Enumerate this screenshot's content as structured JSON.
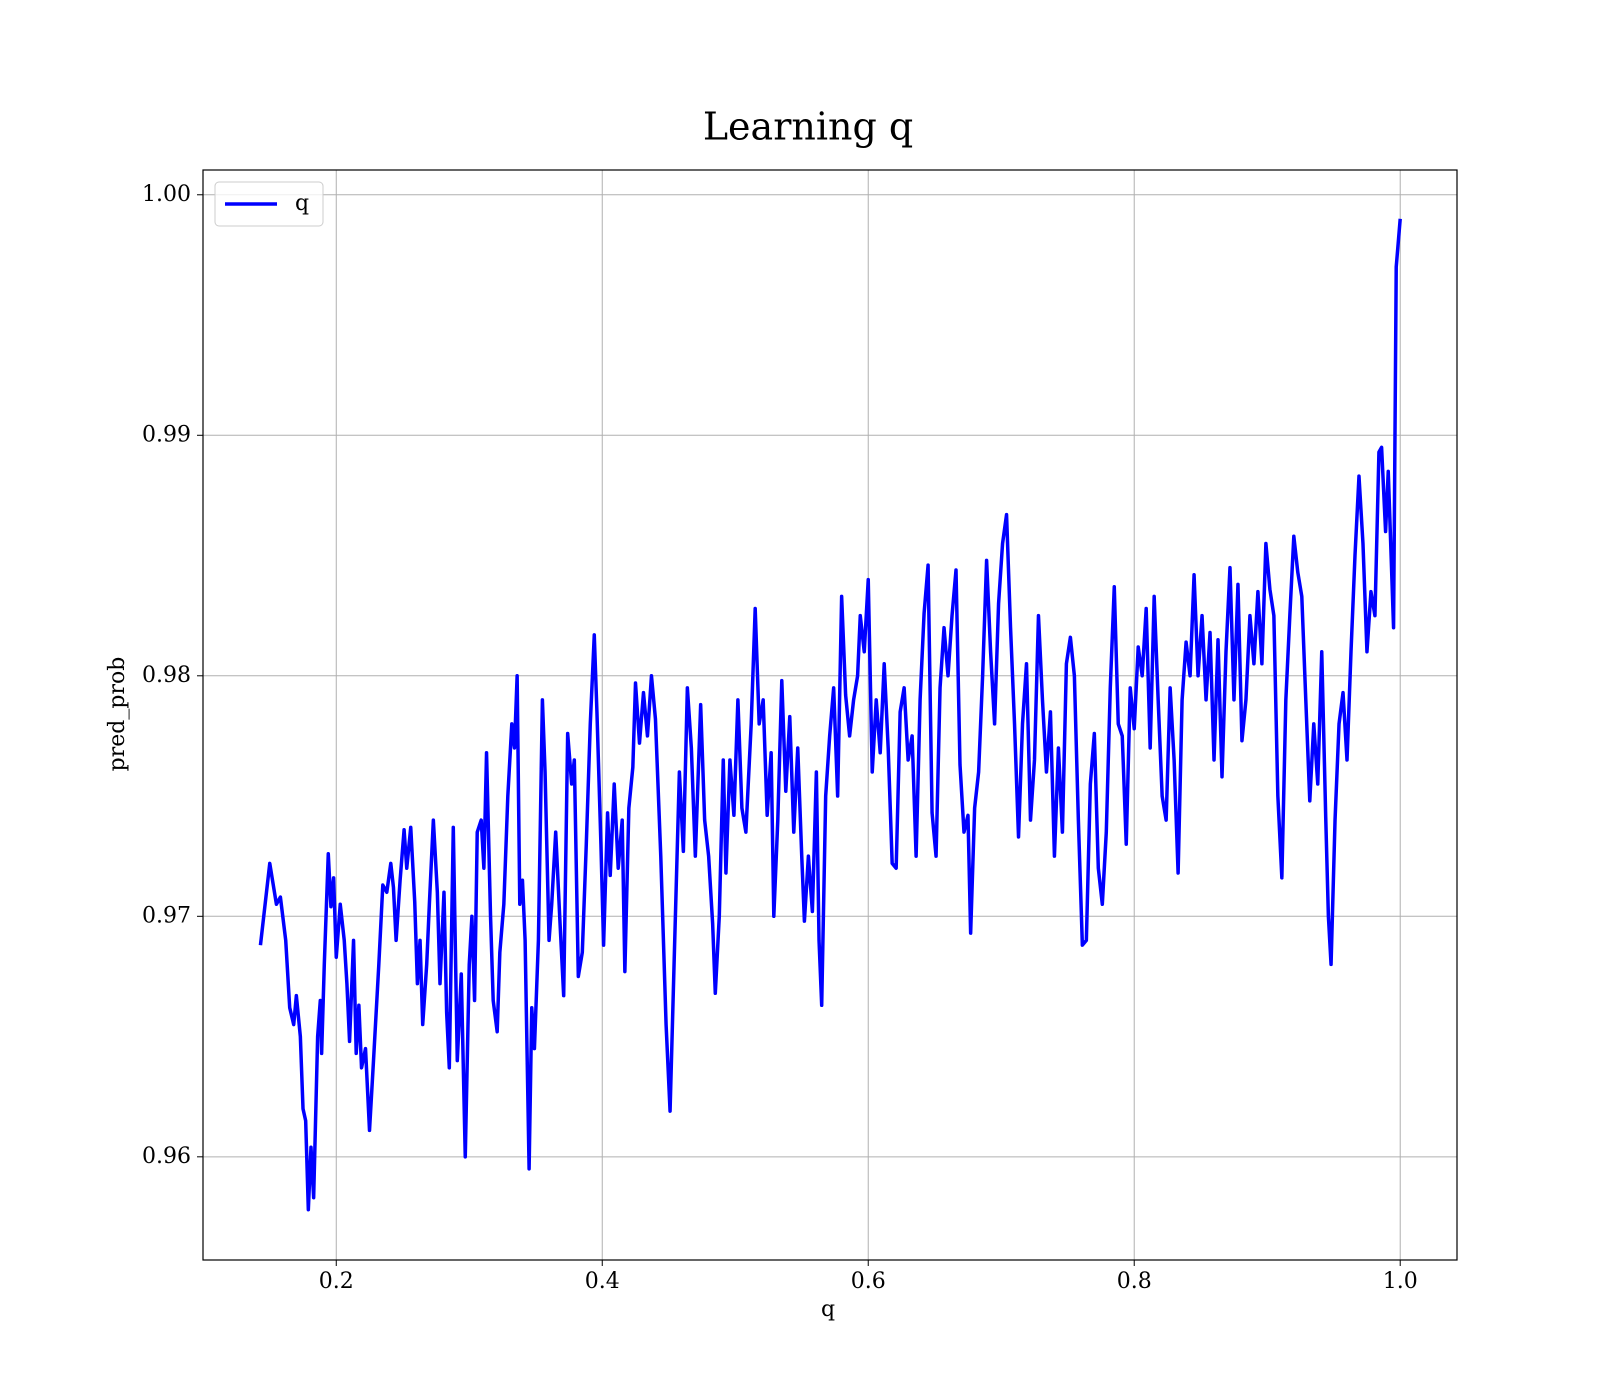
{
  "chart_data": {
    "type": "line",
    "title": "Learning q",
    "x_label": "q",
    "y_label": "pred_prob",
    "x": [
      0.143,
      0.15,
      0.155,
      0.158,
      0.162,
      0.165,
      0.168,
      0.17,
      0.173,
      0.175,
      0.177,
      0.179,
      0.181,
      0.183,
      0.186,
      0.188,
      0.189,
      0.191,
      0.194,
      0.196,
      0.198,
      0.2,
      0.203,
      0.206,
      0.208,
      0.21,
      0.213,
      0.215,
      0.217,
      0.219,
      0.222,
      0.225,
      0.228,
      0.232,
      0.235,
      0.238,
      0.241,
      0.243,
      0.245,
      0.248,
      0.251,
      0.253,
      0.256,
      0.259,
      0.261,
      0.263,
      0.265,
      0.268,
      0.27,
      0.273,
      0.276,
      0.278,
      0.281,
      0.283,
      0.285,
      0.288,
      0.291,
      0.294,
      0.297,
      0.3,
      0.302,
      0.304,
      0.306,
      0.309,
      0.311,
      0.313,
      0.316,
      0.318,
      0.321,
      0.323,
      0.326,
      0.329,
      0.332,
      0.334,
      0.336,
      0.338,
      0.34,
      0.342,
      0.345,
      0.347,
      0.349,
      0.352,
      0.355,
      0.357,
      0.36,
      0.362,
      0.365,
      0.368,
      0.371,
      0.374,
      0.377,
      0.379,
      0.382,
      0.385,
      0.388,
      0.391,
      0.394,
      0.396,
      0.399,
      0.401,
      0.404,
      0.406,
      0.409,
      0.412,
      0.415,
      0.417,
      0.42,
      0.423,
      0.425,
      0.428,
      0.431,
      0.434,
      0.437,
      0.44,
      0.444,
      0.448,
      0.451,
      0.454,
      0.458,
      0.461,
      0.464,
      0.467,
      0.47,
      0.474,
      0.477,
      0.48,
      0.483,
      0.485,
      0.488,
      0.491,
      0.493,
      0.496,
      0.499,
      0.502,
      0.505,
      0.508,
      0.512,
      0.515,
      0.518,
      0.521,
      0.524,
      0.527,
      0.529,
      0.532,
      0.535,
      0.538,
      0.541,
      0.544,
      0.547,
      0.55,
      0.552,
      0.555,
      0.558,
      0.561,
      0.563,
      0.565,
      0.568,
      0.571,
      0.574,
      0.577,
      0.58,
      0.583,
      0.586,
      0.589,
      0.592,
      0.594,
      0.597,
      0.6,
      0.603,
      0.606,
      0.609,
      0.612,
      0.615,
      0.618,
      0.621,
      0.624,
      0.627,
      0.63,
      0.633,
      0.636,
      0.639,
      0.642,
      0.645,
      0.648,
      0.651,
      0.654,
      0.657,
      0.66,
      0.663,
      0.666,
      0.669,
      0.672,
      0.675,
      0.677,
      0.68,
      0.683,
      0.686,
      0.689,
      0.692,
      0.695,
      0.698,
      0.701,
      0.704,
      0.707,
      0.71,
      0.713,
      0.716,
      0.719,
      0.722,
      0.725,
      0.728,
      0.731,
      0.734,
      0.737,
      0.74,
      0.743,
      0.746,
      0.749,
      0.752,
      0.755,
      0.758,
      0.761,
      0.764,
      0.767,
      0.77,
      0.773,
      0.776,
      0.779,
      0.782,
      0.785,
      0.788,
      0.791,
      0.794,
      0.797,
      0.8,
      0.803,
      0.806,
      0.809,
      0.812,
      0.815,
      0.818,
      0.821,
      0.824,
      0.827,
      0.83,
      0.833,
      0.836,
      0.839,
      0.842,
      0.845,
      0.848,
      0.851,
      0.854,
      0.857,
      0.86,
      0.863,
      0.866,
      0.869,
      0.872,
      0.875,
      0.878,
      0.881,
      0.884,
      0.887,
      0.89,
      0.893,
      0.896,
      0.899,
      0.902,
      0.905,
      0.908,
      0.911,
      0.914,
      0.917,
      0.92,
      0.923,
      0.926,
      0.929,
      0.932,
      0.935,
      0.938,
      0.941,
      0.944,
      0.946,
      0.948,
      0.951,
      0.954,
      0.957,
      0.96,
      0.963,
      0.966,
      0.969,
      0.972,
      0.975,
      0.978,
      0.981,
      0.984,
      0.986,
      0.989,
      0.991,
      0.995,
      0.997,
      1.0
    ],
    "series": [
      {
        "name": "q",
        "color": "#0000ff",
        "values": [
          0.9688,
          0.9722,
          0.9705,
          0.9708,
          0.969,
          0.9662,
          0.9655,
          0.9667,
          0.965,
          0.962,
          0.9615,
          0.9578,
          0.9604,
          0.9583,
          0.965,
          0.9665,
          0.9643,
          0.968,
          0.9726,
          0.9704,
          0.9716,
          0.9683,
          0.9705,
          0.969,
          0.9672,
          0.9648,
          0.969,
          0.9643,
          0.9663,
          0.9637,
          0.9645,
          0.9611,
          0.964,
          0.968,
          0.9713,
          0.971,
          0.9722,
          0.9712,
          0.969,
          0.9715,
          0.9736,
          0.972,
          0.9737,
          0.9706,
          0.9672,
          0.969,
          0.9655,
          0.968,
          0.9705,
          0.974,
          0.971,
          0.9672,
          0.971,
          0.966,
          0.9637,
          0.9737,
          0.964,
          0.9676,
          0.96,
          0.968,
          0.97,
          0.9665,
          0.9735,
          0.974,
          0.972,
          0.9768,
          0.97,
          0.9665,
          0.9652,
          0.9685,
          0.9705,
          0.975,
          0.978,
          0.977,
          0.98,
          0.9705,
          0.9715,
          0.969,
          0.9595,
          0.9662,
          0.9645,
          0.969,
          0.979,
          0.976,
          0.969,
          0.9705,
          0.9735,
          0.97,
          0.9667,
          0.9776,
          0.9755,
          0.9765,
          0.9675,
          0.9685,
          0.973,
          0.978,
          0.9817,
          0.9785,
          0.973,
          0.9688,
          0.9743,
          0.9717,
          0.9755,
          0.972,
          0.974,
          0.9677,
          0.9745,
          0.9762,
          0.9797,
          0.9772,
          0.9793,
          0.9775,
          0.98,
          0.9782,
          0.9725,
          0.9655,
          0.9619,
          0.968,
          0.976,
          0.9727,
          0.9795,
          0.977,
          0.9725,
          0.9788,
          0.974,
          0.9725,
          0.9697,
          0.9668,
          0.97,
          0.9765,
          0.9718,
          0.9765,
          0.9742,
          0.979,
          0.9745,
          0.9735,
          0.978,
          0.9828,
          0.978,
          0.979,
          0.9742,
          0.9768,
          0.97,
          0.974,
          0.9798,
          0.9752,
          0.9783,
          0.9735,
          0.977,
          0.9725,
          0.9698,
          0.9725,
          0.9702,
          0.976,
          0.969,
          0.9663,
          0.975,
          0.9775,
          0.9795,
          0.975,
          0.9833,
          0.9792,
          0.9775,
          0.979,
          0.98,
          0.9825,
          0.981,
          0.984,
          0.976,
          0.979,
          0.9768,
          0.9805,
          0.977,
          0.9722,
          0.972,
          0.9785,
          0.9795,
          0.9765,
          0.9775,
          0.9725,
          0.979,
          0.9826,
          0.9846,
          0.9743,
          0.9725,
          0.9795,
          0.982,
          0.98,
          0.9825,
          0.9844,
          0.9763,
          0.9735,
          0.9742,
          0.9693,
          0.9745,
          0.976,
          0.98,
          0.9848,
          0.981,
          0.978,
          0.983,
          0.9855,
          0.9867,
          0.982,
          0.978,
          0.9733,
          0.978,
          0.9805,
          0.974,
          0.9765,
          0.9825,
          0.979,
          0.976,
          0.9785,
          0.9725,
          0.977,
          0.9735,
          0.9805,
          0.9816,
          0.98,
          0.974,
          0.9688,
          0.969,
          0.9755,
          0.9776,
          0.972,
          0.9705,
          0.9735,
          0.9795,
          0.9837,
          0.978,
          0.9775,
          0.973,
          0.9795,
          0.9778,
          0.9812,
          0.98,
          0.9828,
          0.977,
          0.9833,
          0.979,
          0.975,
          0.974,
          0.9795,
          0.9765,
          0.9718,
          0.979,
          0.9814,
          0.98,
          0.9842,
          0.98,
          0.9825,
          0.979,
          0.9818,
          0.9765,
          0.9815,
          0.9758,
          0.981,
          0.9845,
          0.979,
          0.9838,
          0.9773,
          0.979,
          0.9825,
          0.9805,
          0.9835,
          0.9805,
          0.9855,
          0.9836,
          0.9825,
          0.975,
          0.9716,
          0.979,
          0.9825,
          0.9858,
          0.9843,
          0.9833,
          0.979,
          0.9748,
          0.978,
          0.9755,
          0.981,
          0.9741,
          0.97,
          0.968,
          0.974,
          0.978,
          0.9793,
          0.9765,
          0.981,
          0.985,
          0.9883,
          0.9855,
          0.981,
          0.9835,
          0.9825,
          0.9893,
          0.9895,
          0.986,
          0.9885,
          0.982,
          0.997,
          0.999
        ]
      }
    ],
    "xlim": [
      0.0998,
      1.0427
    ],
    "ylim": [
      0.95571,
      1.00103
    ],
    "xticks": [
      0.2,
      0.4,
      0.6,
      0.8,
      {
        "value": 1,
        "label": "1.0"
      }
    ],
    "yticks": [
      0.96,
      0.97,
      0.98,
      0.99,
      {
        "value": 1,
        "label": "1.00"
      }
    ],
    "grid": true,
    "legend": "upper left"
  }
}
